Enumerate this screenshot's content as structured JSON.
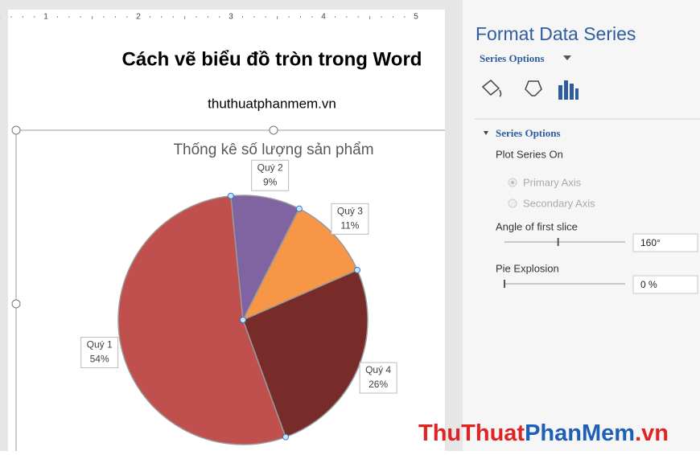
{
  "ruler": [
    "1",
    "2",
    "3",
    "4",
    "5"
  ],
  "document": {
    "title": "Cách vẽ biểu đồ tròn trong Word",
    "subtitle": "thuthuatphanmem.vn"
  },
  "chart_data": {
    "type": "pie",
    "title": "Thống kê số lượng sản phẩm",
    "categories": [
      "Quý 1",
      "Quý 2",
      "Quý 3",
      "Quý 4"
    ],
    "values": [
      54,
      9,
      11,
      26
    ],
    "value_labels": [
      "54%",
      "9%",
      "11%",
      "26%"
    ],
    "colors": [
      "#c0504d",
      "#8064a2",
      "#f79646",
      "#772c2a"
    ]
  },
  "panel": {
    "title": "Format Data Series",
    "dropdown": "Series Options",
    "section": "Series Options",
    "plot_series_on": "Plot Series On",
    "primary_axis": "Primary Axis",
    "secondary_axis": "Secondary Axis",
    "angle_label": "Angle of first slice",
    "angle": {
      "value": 160,
      "label": "160°"
    },
    "explosion_label": "Pie Explosion",
    "explosion": {
      "value": 0,
      "label": "0 %"
    }
  },
  "watermark": {
    "part1": "ThuThuat",
    "part2": "PhanMem",
    "part3": ".vn"
  }
}
